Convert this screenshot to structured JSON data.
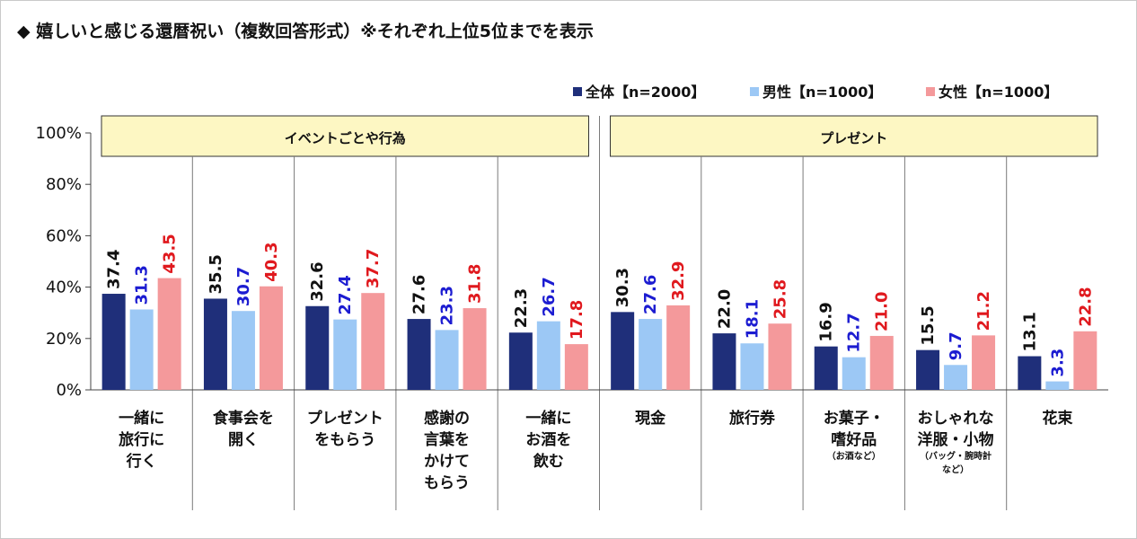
{
  "title": "◆ 嬉しいと感じる還暦祝い（複数回答形式）※それぞれ上位5位までを表示",
  "chart_data": {
    "type": "bar",
    "categories": [
      {
        "lines": [
          "一緒に",
          "旅行に",
          "行く"
        ],
        "note": []
      },
      {
        "lines": [
          "食事会を",
          "開く"
        ],
        "note": []
      },
      {
        "lines": [
          "プレゼント",
          "をもらう"
        ],
        "note": []
      },
      {
        "lines": [
          "感謝の",
          "言葉を",
          "かけて",
          "もらう"
        ],
        "note": []
      },
      {
        "lines": [
          "一緒に",
          "お酒を",
          "飲む"
        ],
        "note": []
      },
      {
        "lines": [
          "現金"
        ],
        "note": []
      },
      {
        "lines": [
          "旅行券"
        ],
        "note": []
      },
      {
        "lines": [
          "お菓子・",
          "嗜好品"
        ],
        "note": [
          "（お酒など）"
        ]
      },
      {
        "lines": [
          "おしゃれな",
          "洋服・小物"
        ],
        "note": [
          "（バッグ・腕時計",
          "など）"
        ]
      },
      {
        "lines": [
          "花束"
        ],
        "note": []
      }
    ],
    "series": [
      {
        "name": "全体【n=2000】",
        "color": "#1f2f7a",
        "label_color": "#111111",
        "values": [
          37.4,
          35.5,
          32.6,
          27.6,
          22.3,
          30.3,
          22.0,
          16.9,
          15.5,
          13.1
        ],
        "labels": [
          "37.4",
          "35.5",
          "32.6",
          "27.6",
          "22.3",
          "30.3",
          "22.0",
          "16.9",
          "15.5",
          "13.1"
        ]
      },
      {
        "name": "男性【n=1000】",
        "color": "#9cc8f5",
        "label_color": "#1c1cd1",
        "values": [
          31.3,
          30.7,
          27.4,
          23.3,
          26.7,
          27.6,
          18.1,
          12.7,
          9.7,
          3.3
        ],
        "labels": [
          "31.3",
          "30.7",
          "27.4",
          "23.3",
          "26.7",
          "27.6",
          "18.1",
          "12.7",
          "9.7",
          "3.3"
        ]
      },
      {
        "name": "女性【n=1000】",
        "color": "#f4999b",
        "label_color": "#e0191e",
        "values": [
          43.5,
          40.3,
          37.7,
          31.8,
          17.8,
          32.9,
          25.8,
          21.0,
          21.2,
          22.8
        ],
        "labels": [
          "43.5",
          "40.3",
          "37.7",
          "31.8",
          "17.8",
          "32.9",
          "25.8",
          "21.0",
          "21.2",
          "22.8"
        ]
      }
    ],
    "groups": [
      {
        "label": "イベントごとや行為",
        "from": 0,
        "to": 4
      },
      {
        "label": "プレゼント",
        "from": 5,
        "to": 9
      }
    ],
    "group_box_color": "#fdf7c3",
    "y_ticks": [
      "0%",
      "20%",
      "40%",
      "60%",
      "80%",
      "100%"
    ],
    "ylim": [
      0,
      100
    ],
    "legend_position": "top-right"
  }
}
